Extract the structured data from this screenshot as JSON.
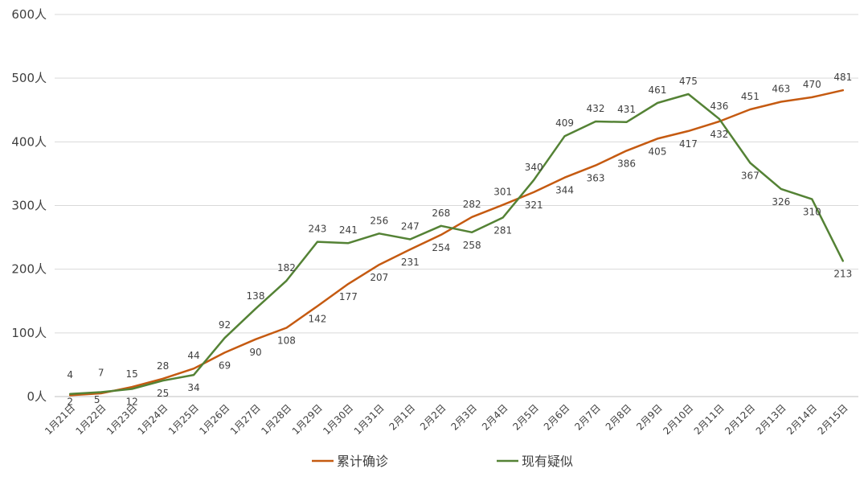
{
  "chart_data": {
    "type": "line",
    "title": "",
    "xlabel": "",
    "ylabel": "",
    "ylim": [
      0,
      600
    ],
    "yticks": [
      {
        "value": 0,
        "label": "0人"
      },
      {
        "value": 100,
        "label": "100人"
      },
      {
        "value": 200,
        "label": "200人"
      },
      {
        "value": 300,
        "label": "300人"
      },
      {
        "value": 400,
        "label": "400人"
      },
      {
        "value": 500,
        "label": "500人"
      },
      {
        "value": 600,
        "label": "600人"
      }
    ],
    "grid": true,
    "legend_position": "bottom",
    "categories": [
      "1月21日",
      "1月22日",
      "1月23日",
      "1月24日",
      "1月25日",
      "1月26日",
      "1月27日",
      "1月28日",
      "1月29日",
      "1月30日",
      "1月31日",
      "2月1日",
      "2月2日",
      "2月3日",
      "2月4日",
      "2月5日",
      "2月6日",
      "2月7日",
      "2月8日",
      "2月9日",
      "2月10日",
      "2月11日",
      "2月12日",
      "2月13日",
      "2月14日",
      "2月15日"
    ],
    "series": [
      {
        "name": "累计确诊",
        "color": "#C55A11",
        "values": [
          2,
          5,
          15,
          28,
          44,
          69,
          90,
          108,
          142,
          177,
          207,
          231,
          254,
          282,
          301,
          321,
          344,
          363,
          386,
          405,
          417,
          432,
          451,
          463,
          470,
          481
        ]
      },
      {
        "name": "现有疑似",
        "color": "#548235",
        "values": [
          4,
          7,
          12,
          25,
          34,
          92,
          138,
          182,
          243,
          241,
          256,
          247,
          268,
          258,
          281,
          340,
          409,
          432,
          431,
          461,
          475,
          436,
          367,
          326,
          310,
          213
        ]
      }
    ]
  }
}
